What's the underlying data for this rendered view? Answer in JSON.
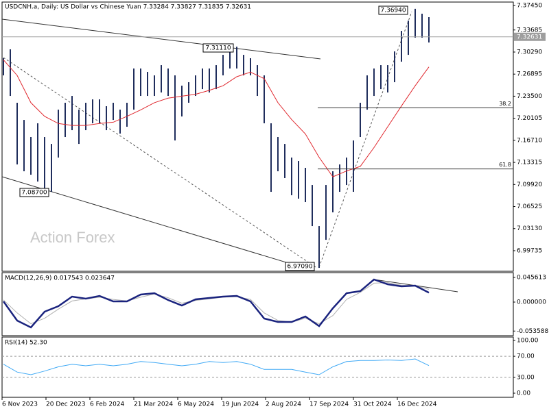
{
  "chart_data": [
    {
      "type": "ohlc",
      "title": "USDCNH.a, Daily:  US Dollar vs Chinese Yuan  7.33284 7.33827 7.31835 7.32631",
      "color": "#1f2d5c",
      "ma_color": "#e0282e",
      "ylim": [
        6.9657,
        7.3798
      ],
      "yticks": [
        {
          "value": 7.3745,
          "label": "7.37450"
        },
        7.33685,
        {
          "value": 7.3029,
          "label": "7.30290"
        },
        7.26895,
        {
          "value": 7.235,
          "label": "7.23500"
        },
        7.20105,
        {
          "value": 7.1671,
          "label": "7.16710"
        },
        7.13315,
        {
          "value": 7.0992,
          "label": "7.09920"
        },
        7.06525,
        {
          "value": 7.0313,
          "label": "7.03130"
        },
        6.99735
      ],
      "last_price": 7.32631,
      "high": [
        7.2934,
        7.3071,
        7.2249,
        7.1985,
        7.1722,
        7.1933,
        7.1722,
        7.1616,
        7.2143,
        7.2249,
        7.2354,
        7.2143,
        7.2249,
        7.2301,
        7.2301,
        7.2196,
        7.2249,
        7.2143,
        7.2249,
        7.2776,
        7.2776,
        7.2723,
        7.267,
        7.2828,
        7.2776,
        7.267,
        7.2512,
        7.2565,
        7.267,
        7.2776,
        7.2776,
        7.2828,
        7.2986,
        7.3092,
        7.3111,
        7.2986,
        7.2934,
        7.2828,
        7.267,
        7.1933,
        7.1722,
        7.1616,
        7.1406,
        7.1353,
        7.1248,
        7.0984,
        7.0352,
        7.0984,
        7.1195,
        7.13,
        7.1406,
        7.1669,
        7.2249,
        7.267,
        7.2776,
        7.2828,
        7.2828,
        7.3039,
        7.3355,
        7.3513,
        7.3694,
        7.3619,
        7.3566
      ],
      "low": [
        7.267,
        7.2354,
        7.13,
        7.1195,
        7.1142,
        7.1037,
        7.087,
        7.0879,
        7.1406,
        7.1722,
        7.1827,
        7.1616,
        7.1827,
        7.1933,
        7.1933,
        7.1827,
        7.1985,
        7.1775,
        7.188,
        7.2143,
        7.2354,
        7.2354,
        7.2354,
        7.2407,
        7.2354,
        7.1669,
        7.2038,
        7.2249,
        7.2354,
        7.2459,
        7.2407,
        7.2459,
        7.267,
        7.2776,
        7.2776,
        7.267,
        7.267,
        7.2354,
        7.1933,
        7.0879,
        7.1195,
        7.109,
        7.0826,
        7.0774,
        7.0721,
        7.0352,
        6.9709,
        7.0141,
        7.0563,
        7.0879,
        7.0984,
        7.0879,
        7.1722,
        7.2143,
        7.2354,
        7.2459,
        7.2407,
        7.2565,
        7.2881,
        7.2986,
        7.325,
        7.325,
        7.3176
      ],
      "ma": [
        7.291,
        7.267,
        7.225,
        7.204,
        7.193,
        7.19,
        7.19,
        7.193,
        7.195,
        7.204,
        7.214,
        7.225,
        7.232,
        7.235,
        7.238,
        7.244,
        7.251,
        7.265,
        7.272,
        7.262,
        7.225,
        7.199,
        7.177,
        7.141,
        7.111,
        7.12,
        7.127,
        7.156,
        7.188,
        7.22,
        7.251,
        7.28
      ],
      "fib_levels": [
        {
          "label": "38.2",
          "value": 7.2172
        },
        {
          "label": "61.8",
          "value": 7.1231
        }
      ],
      "annotations": [
        "7.31110",
        "7.08700",
        "6.97090",
        "7.36940"
      ],
      "watermark": "Action Forex"
    },
    {
      "type": "macd",
      "title": "MACD(12,26,9) 0.017543 0.023647",
      "ylim": [
        -0.0621,
        0.0545
      ],
      "yticks": [
        0.045613,
        {
          "value": 0,
          "label": "0.000000"
        },
        -0.053588
      ],
      "series": [
        {
          "color": "#b0b0b0",
          "values": [
            0.004,
            -0.02,
            -0.04,
            -0.03,
            -0.013,
            0.002,
            0.006,
            0.009,
            0.005,
            0.002,
            0.009,
            0.015,
            0.008,
            -0.002,
            0.003,
            0.006,
            0.009,
            0.01,
            0.005,
            -0.02,
            -0.034,
            -0.037,
            -0.03,
            -0.04,
            -0.025,
            0.005,
            0.018,
            0.035,
            0.036,
            0.031,
            0.03,
            0.0236
          ]
        },
        {
          "color": "#1a237e",
          "values": [
            0.0013,
            -0.0342,
            -0.0469,
            -0.0177,
            -0.0076,
            0.0101,
            0.0063,
            0.0114,
            0.0013,
            0.0013,
            0.0139,
            0.0165,
            0.0038,
            -0.0063,
            0.0051,
            0.0076,
            0.0101,
            0.0114,
            0.0013,
            -0.0304,
            -0.0368,
            -0.0368,
            -0.0266,
            -0.0444,
            -0.0114,
            0.0165,
            0.0203,
            0.0418,
            0.033,
            0.0292,
            0.0304,
            0.0175
          ]
        }
      ]
    },
    {
      "type": "line",
      "title": "RSI(14) 52.30",
      "ylim": [
        -7.8,
        106.5
      ],
      "yticks": [
        {
          "value": 100,
          "label": "100.00"
        },
        {
          "value": 70,
          "label": "70.00"
        },
        {
          "value": 30,
          "label": "30.00"
        },
        {
          "value": 0,
          "label": "0.00"
        }
      ],
      "levels": [
        70,
        30
      ],
      "color": "#3fa9f5",
      "values": [
        55,
        40,
        35,
        42,
        50,
        55,
        52,
        55,
        52,
        55,
        60,
        58,
        55,
        52,
        55,
        60,
        58,
        60,
        55,
        45,
        45,
        45,
        40,
        35,
        50,
        60,
        62,
        62,
        63,
        62,
        65,
        52.3
      ]
    }
  ],
  "x_axis": {
    "labels": [
      "6 Nov 2023",
      "20 Dec 2023",
      "6 Feb 2024",
      "21 Mar 2024",
      "6 May 2024",
      "19 Jun 2024",
      "2 Aug 2024",
      "17 Sep 2024",
      "31 Oct 2024",
      "16 Dec 2024"
    ]
  }
}
